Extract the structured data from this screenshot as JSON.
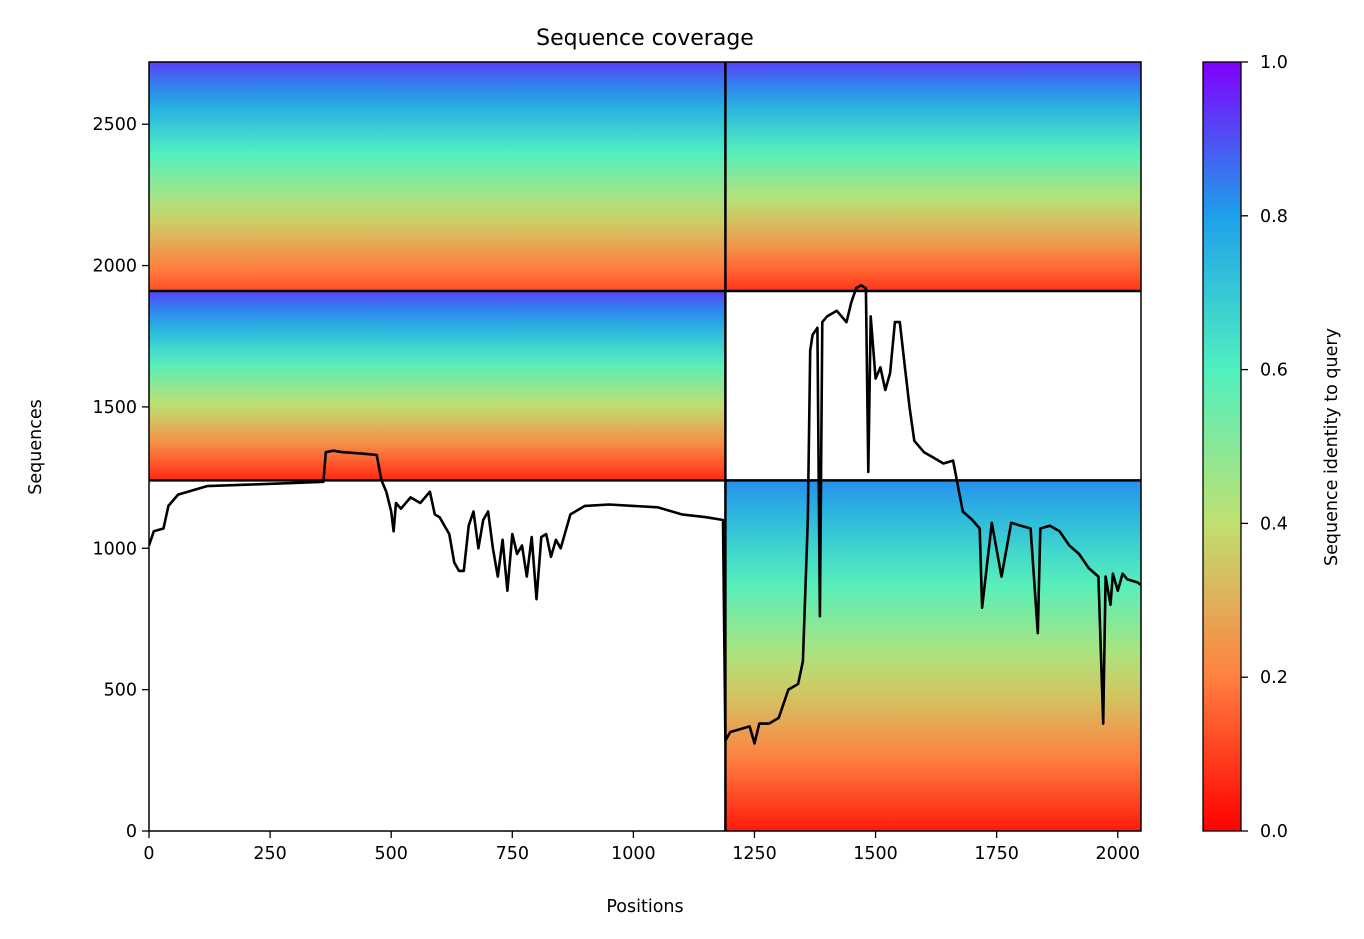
{
  "chart_data": {
    "type": "heatmap",
    "title": "Sequence coverage",
    "xlabel": "Positions",
    "ylabel": "Sequences",
    "xlim": [
      0,
      2048
    ],
    "ylim": [
      0,
      2720
    ],
    "x_ticks": [
      0,
      250,
      500,
      750,
      1000,
      1250,
      1500,
      1750,
      2000
    ],
    "x_tick_labels": [
      "0",
      "250",
      "500",
      "750",
      "1000",
      "1250",
      "1500",
      "1750",
      "2000"
    ],
    "y_ticks": [
      0,
      500,
      1000,
      1500,
      2000,
      2500
    ],
    "y_tick_labels": [
      "0",
      "500",
      "1000",
      "1500",
      "2000",
      "2500"
    ],
    "colorbar": {
      "label": "Sequence identity to query",
      "range": [
        0,
        1
      ],
      "ticks": [
        "0.0",
        "0.2",
        "0.4",
        "0.6",
        "0.8",
        "1.0"
      ],
      "colormap": "rainbow_r",
      "stops": [
        "#ff0000",
        "#ff8040",
        "#c0e070",
        "#50f0c0",
        "#1ea0ea",
        "#8000ff"
      ]
    },
    "grid": false,
    "block_boundaries": {
      "x": [
        1190
      ],
      "y": [
        1240,
        1910
      ]
    },
    "coverage_blocks": [
      {
        "x": [
          0,
          1190
        ],
        "y": [
          1910,
          2720
        ],
        "identity_top": 0.92,
        "identity_bottom": 0.12
      },
      {
        "x": [
          1190,
          2048
        ],
        "y": [
          1910,
          2720
        ],
        "identity_top": 0.92,
        "identity_bottom": 0.08
      },
      {
        "x": [
          0,
          1190
        ],
        "y": [
          1240,
          1910
        ],
        "identity_top": 0.92,
        "identity_bottom": 0.06
      },
      {
        "x": [
          1190,
          2048
        ],
        "y": [
          0,
          1240
        ],
        "identity_top": 0.82,
        "identity_bottom": 0.04
      }
    ],
    "coverage_line": {
      "x": [
        0,
        10,
        30,
        40,
        60,
        80,
        120,
        200,
        280,
        360,
        365,
        380,
        400,
        440,
        470,
        480,
        490,
        500,
        505,
        510,
        520,
        540,
        560,
        580,
        590,
        600,
        620,
        630,
        640,
        650,
        660,
        670,
        680,
        690,
        700,
        710,
        720,
        730,
        740,
        750,
        760,
        770,
        780,
        790,
        800,
        810,
        820,
        830,
        840,
        850,
        870,
        900,
        950,
        1000,
        1050,
        1100,
        1150,
        1185,
        1190,
        1200,
        1220,
        1240,
        1250,
        1260,
        1280,
        1300,
        1320,
        1340,
        1350,
        1360,
        1365,
        1370,
        1380,
        1385,
        1390,
        1400,
        1420,
        1440,
        1450,
        1460,
        1470,
        1480,
        1485,
        1490,
        1500,
        1510,
        1520,
        1530,
        1540,
        1550,
        1560,
        1570,
        1580,
        1600,
        1620,
        1640,
        1660,
        1680,
        1700,
        1715,
        1720,
        1740,
        1760,
        1780,
        1800,
        1820,
        1835,
        1840,
        1860,
        1880,
        1900,
        1920,
        1940,
        1960,
        1970,
        1975,
        1985,
        1990,
        2000,
        2010,
        2020,
        2040,
        2048
      ],
      "y": [
        1010,
        1060,
        1070,
        1150,
        1190,
        1200,
        1220,
        1225,
        1230,
        1235,
        1340,
        1345,
        1340,
        1335,
        1330,
        1240,
        1200,
        1130,
        1060,
        1160,
        1140,
        1180,
        1160,
        1200,
        1120,
        1110,
        1050,
        950,
        920,
        920,
        1080,
        1130,
        1000,
        1100,
        1130,
        1000,
        900,
        1030,
        850,
        1050,
        980,
        1010,
        900,
        1040,
        820,
        1040,
        1050,
        970,
        1030,
        1000,
        1120,
        1150,
        1155,
        1150,
        1145,
        1120,
        1110,
        1100,
        320,
        350,
        360,
        370,
        310,
        380,
        380,
        400,
        500,
        520,
        600,
        1100,
        1700,
        1755,
        1780,
        760,
        1800,
        1820,
        1840,
        1800,
        1870,
        1920,
        1930,
        1920,
        1270,
        1820,
        1600,
        1640,
        1560,
        1620,
        1800,
        1800,
        1650,
        1500,
        1380,
        1340,
        1320,
        1300,
        1310,
        1130,
        1100,
        1070,
        790,
        1090,
        900,
        1090,
        1080,
        1070,
        700,
        1070,
        1080,
        1060,
        1010,
        980,
        930,
        900,
        380,
        900,
        800,
        910,
        850,
        910,
        890,
        880,
        870
      ]
    }
  }
}
